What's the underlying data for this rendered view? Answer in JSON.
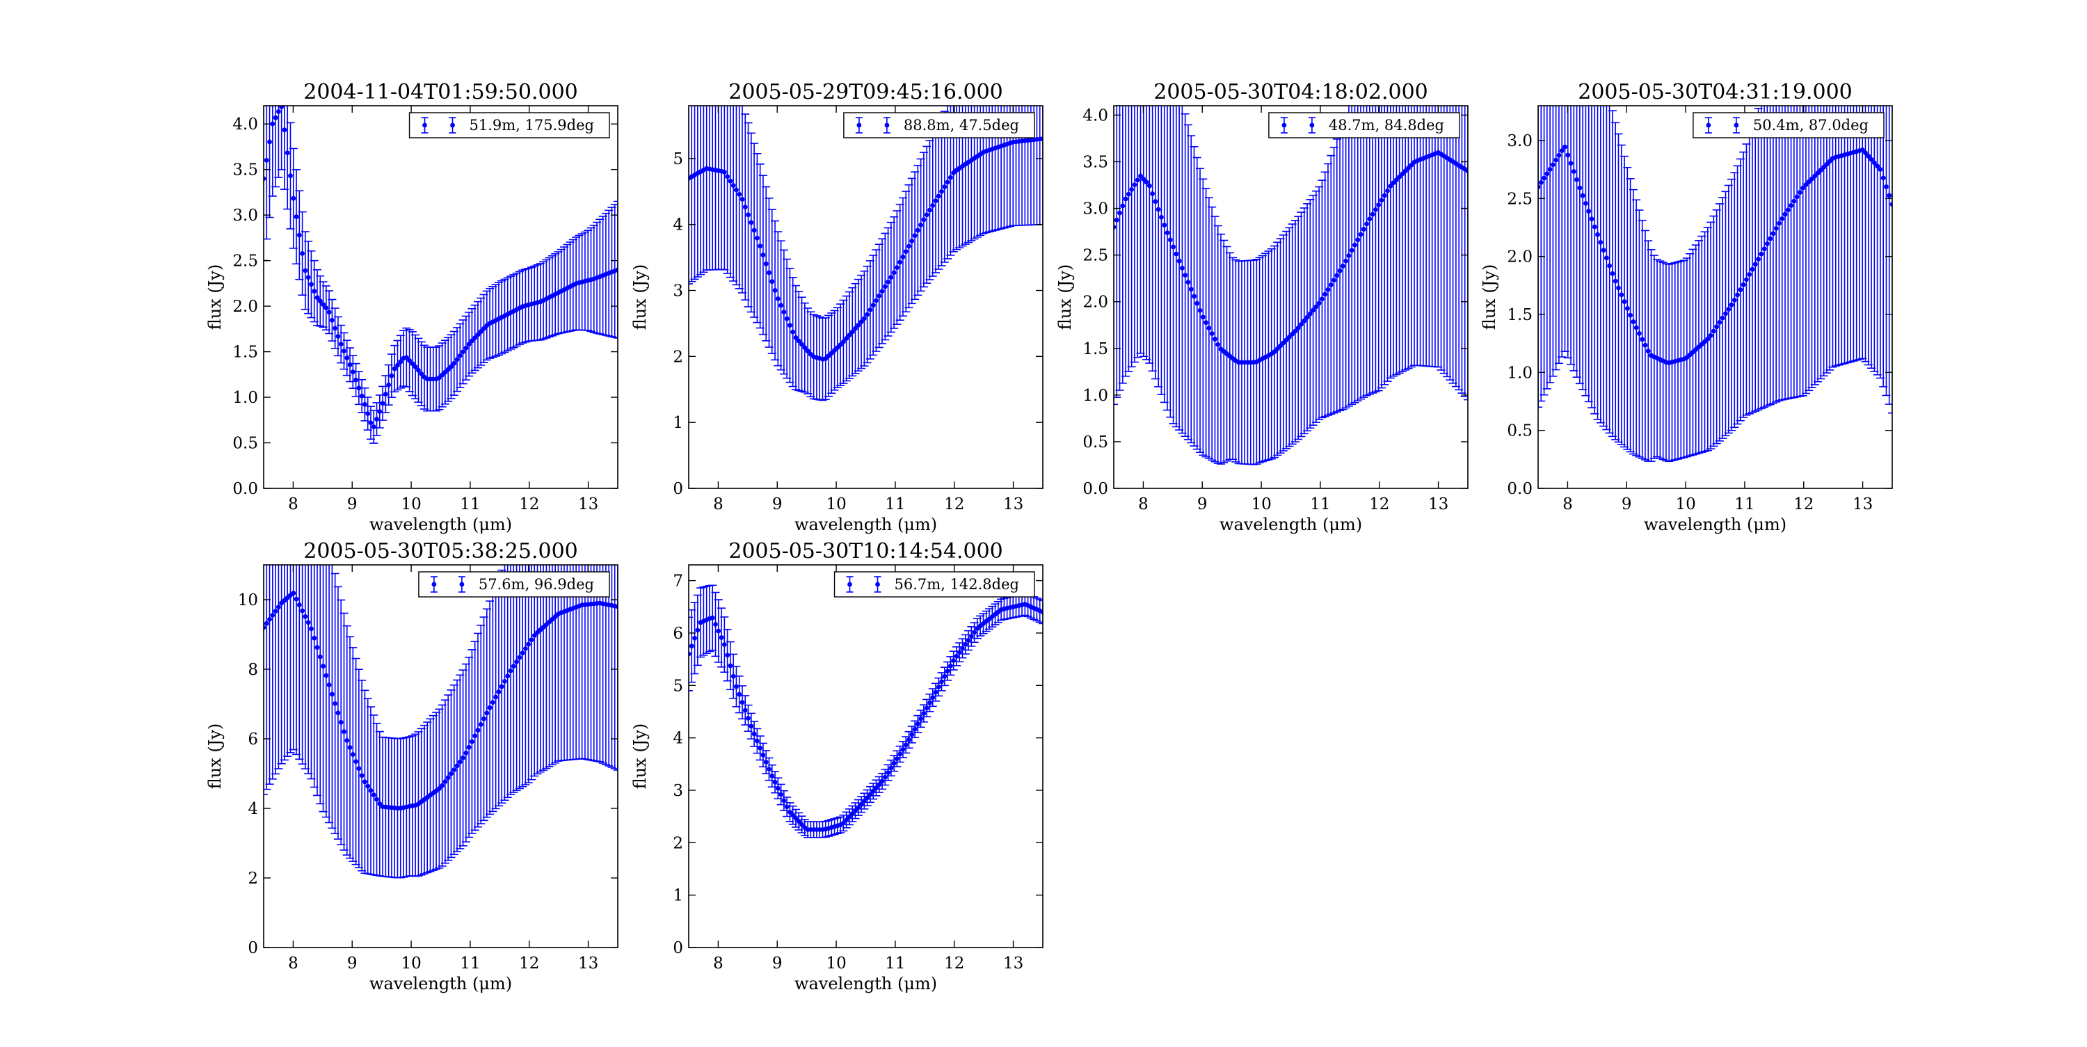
{
  "chart_data": [
    {
      "type": "scatter",
      "title": "2004-11-04T01:59:50.000",
      "xlabel": "wavelength (μm)",
      "ylabel": "flux (Jy)",
      "xlim": [
        7.5,
        13.5
      ],
      "ylim": [
        0,
        4.2
      ],
      "xticks": [
        "8",
        "9",
        "10",
        "11",
        "12",
        "13"
      ],
      "yticks": [
        "0.0",
        "0.5",
        "1.0",
        "1.5",
        "2.0",
        "2.5",
        "3.0",
        "3.5",
        "4.0"
      ],
      "legend": "51.9m, 175.9deg",
      "legend_position": "top-right",
      "color": "#0000ff",
      "knots": {
        "x": [
          7.5,
          7.65,
          7.8,
          8.0,
          8.2,
          8.4,
          8.6,
          8.8,
          9.0,
          9.2,
          9.35,
          9.5,
          9.7,
          9.9,
          10.05,
          10.25,
          10.45,
          10.7,
          11.0,
          11.3,
          11.6,
          11.9,
          12.2,
          12.5,
          12.8,
          13.1,
          13.5
        ],
        "y": [
          3.4,
          4.0,
          4.2,
          3.2,
          2.4,
          2.1,
          1.95,
          1.6,
          1.3,
          0.95,
          0.65,
          0.9,
          1.3,
          1.45,
          1.35,
          1.2,
          1.2,
          1.35,
          1.6,
          1.8,
          1.9,
          2.0,
          2.05,
          2.15,
          2.25,
          2.3,
          2.4
        ]
      },
      "error_knots": {
        "x": [
          7.5,
          8.0,
          8.5,
          9.0,
          9.5,
          10.0,
          10.5,
          11.0,
          11.5,
          12.0,
          12.5,
          13.0,
          13.5
        ],
        "e": [
          0.9,
          0.55,
          0.25,
          0.18,
          0.18,
          0.35,
          0.35,
          0.35,
          0.4,
          0.4,
          0.45,
          0.55,
          0.75
        ]
      }
    },
    {
      "type": "scatter",
      "title": "2005-05-29T09:45:16.000",
      "xlabel": "wavelength (μm)",
      "ylabel": "flux (Jy)",
      "xlim": [
        7.5,
        13.5
      ],
      "ylim": [
        0,
        5.8
      ],
      "xticks": [
        "8",
        "9",
        "10",
        "11",
        "12",
        "13"
      ],
      "yticks": [
        "0",
        "1",
        "2",
        "3",
        "4",
        "5"
      ],
      "legend": "88.8m, 47.5deg",
      "legend_position": "top-right",
      "color": "#0000ff",
      "knots": {
        "x": [
          7.5,
          7.8,
          8.1,
          8.4,
          8.7,
          9.0,
          9.3,
          9.6,
          9.8,
          10.1,
          10.5,
          11.0,
          11.5,
          12.0,
          12.5,
          13.0,
          13.5
        ],
        "y": [
          4.7,
          4.85,
          4.8,
          4.4,
          3.7,
          2.9,
          2.3,
          2.0,
          1.95,
          2.2,
          2.6,
          3.3,
          4.1,
          4.8,
          5.1,
          5.25,
          5.3
        ]
      },
      "error_knots": {
        "x": [
          7.5,
          8.5,
          9.5,
          10.0,
          11.0,
          12.0,
          13.5
        ],
        "e": [
          1.6,
          1.4,
          0.65,
          0.6,
          0.85,
          1.2,
          1.3
        ]
      }
    },
    {
      "type": "scatter",
      "title": "2005-05-30T04:18:02.000",
      "xlabel": "wavelength (μm)",
      "ylabel": "flux (Jy)",
      "xlim": [
        7.5,
        13.5
      ],
      "ylim": [
        0,
        4.1
      ],
      "xticks": [
        "8",
        "9",
        "10",
        "11",
        "12",
        "13"
      ],
      "yticks": [
        "0.0",
        "0.5",
        "1.0",
        "1.5",
        "2.0",
        "2.5",
        "3.0",
        "3.5",
        "4.0"
      ],
      "legend": "48.7m, 84.8deg",
      "legend_position": "top-right",
      "color": "#0000ff",
      "knots": {
        "x": [
          7.5,
          7.7,
          7.95,
          8.1,
          8.4,
          8.7,
          9.0,
          9.3,
          9.6,
          9.9,
          10.2,
          10.6,
          11.0,
          11.4,
          11.8,
          12.2,
          12.6,
          13.0,
          13.5
        ],
        "y": [
          2.8,
          3.1,
          3.35,
          3.25,
          2.75,
          2.3,
          1.85,
          1.5,
          1.35,
          1.35,
          1.45,
          1.7,
          2.0,
          2.4,
          2.85,
          3.25,
          3.5,
          3.6,
          3.4
        ]
      },
      "error_knots": {
        "x": [
          7.5,
          8.5,
          9.5,
          10.0,
          11.0,
          12.0,
          13.5
        ],
        "e": [
          1.9,
          1.9,
          1.08,
          1.1,
          1.25,
          2.0,
          2.45
        ]
      }
    },
    {
      "type": "scatter",
      "title": "2005-05-30T04:31:19.000",
      "xlabel": "wavelength (μm)",
      "ylabel": "flux (Jy)",
      "xlim": [
        7.5,
        13.5
      ],
      "ylim": [
        0,
        3.3
      ],
      "xticks": [
        "8",
        "9",
        "10",
        "11",
        "12",
        "13"
      ],
      "yticks": [
        "0.0",
        "0.5",
        "1.0",
        "1.5",
        "2.0",
        "2.5",
        "3.0"
      ],
      "legend": "50.4m, 87.0deg",
      "legend_position": "top-right",
      "color": "#0000ff",
      "knots": {
        "x": [
          7.5,
          7.7,
          7.95,
          8.2,
          8.5,
          8.8,
          9.1,
          9.4,
          9.7,
          10.0,
          10.4,
          10.8,
          11.2,
          11.6,
          12.0,
          12.5,
          13.0,
          13.3,
          13.5
        ],
        "y": [
          2.6,
          2.75,
          2.95,
          2.6,
          2.2,
          1.8,
          1.45,
          1.15,
          1.08,
          1.12,
          1.3,
          1.6,
          1.95,
          2.3,
          2.6,
          2.85,
          2.92,
          2.75,
          2.45
        ]
      },
      "error_knots": {
        "x": [
          7.5,
          8.5,
          9.5,
          10.0,
          11.0,
          12.0,
          13.5
        ],
        "e": [
          1.9,
          1.6,
          0.85,
          0.85,
          1.15,
          1.8,
          1.8
        ]
      }
    },
    {
      "type": "scatter",
      "title": "2005-05-30T05:38:25.000",
      "xlabel": "wavelength (μm)",
      "ylabel": "flux (Jy)",
      "xlim": [
        7.5,
        13.5
      ],
      "ylim": [
        0,
        11
      ],
      "xticks": [
        "8",
        "9",
        "10",
        "11",
        "12",
        "13"
      ],
      "yticks": [
        "0",
        "2",
        "4",
        "6",
        "8",
        "10"
      ],
      "legend": "57.6m, 96.9deg",
      "legend_position": "top-right",
      "color": "#0000ff",
      "knots": {
        "x": [
          7.5,
          7.8,
          8.0,
          8.3,
          8.6,
          8.9,
          9.2,
          9.5,
          9.8,
          10.1,
          10.5,
          10.9,
          11.3,
          11.7,
          12.1,
          12.5,
          12.9,
          13.2,
          13.5
        ],
        "y": [
          9.2,
          9.9,
          10.2,
          9.2,
          7.6,
          6.0,
          4.8,
          4.05,
          4.0,
          4.1,
          4.6,
          5.5,
          6.8,
          8.0,
          9.0,
          9.6,
          9.85,
          9.9,
          9.8
        ]
      },
      "error_knots": {
        "x": [
          7.5,
          8.5,
          9.5,
          10.0,
          11.0,
          12.0,
          13.5
        ],
        "e": [
          4.8,
          4.2,
          2.0,
          2.0,
          2.6,
          4.0,
          4.7
        ]
      }
    },
    {
      "type": "scatter",
      "title": "2005-05-30T10:14:54.000",
      "xlabel": "wavelength (μm)",
      "ylabel": "flux (Jy)",
      "xlim": [
        7.5,
        13.5
      ],
      "ylim": [
        0,
        7.3
      ],
      "xticks": [
        "8",
        "9",
        "10",
        "11",
        "12",
        "13"
      ],
      "yticks": [
        "0",
        "1",
        "2",
        "3",
        "4",
        "5",
        "6",
        "7"
      ],
      "legend": "56.7m, 142.8deg",
      "legend_position": "top-right",
      "color": "#0000ff",
      "knots": {
        "x": [
          7.5,
          7.7,
          7.9,
          8.1,
          8.3,
          8.6,
          8.9,
          9.2,
          9.5,
          9.8,
          10.1,
          10.4,
          10.8,
          11.2,
          11.6,
          12.0,
          12.4,
          12.8,
          13.2,
          13.5
        ],
        "y": [
          5.6,
          6.2,
          6.3,
          5.8,
          5.0,
          4.1,
          3.3,
          2.6,
          2.25,
          2.25,
          2.35,
          2.7,
          3.2,
          3.9,
          4.7,
          5.5,
          6.1,
          6.45,
          6.55,
          6.4
        ]
      },
      "error_knots": {
        "x": [
          7.5,
          8.0,
          8.5,
          9.5,
          11.0,
          13.5
        ],
        "e": [
          0.7,
          0.6,
          0.25,
          0.15,
          0.15,
          0.22
        ]
      }
    }
  ]
}
